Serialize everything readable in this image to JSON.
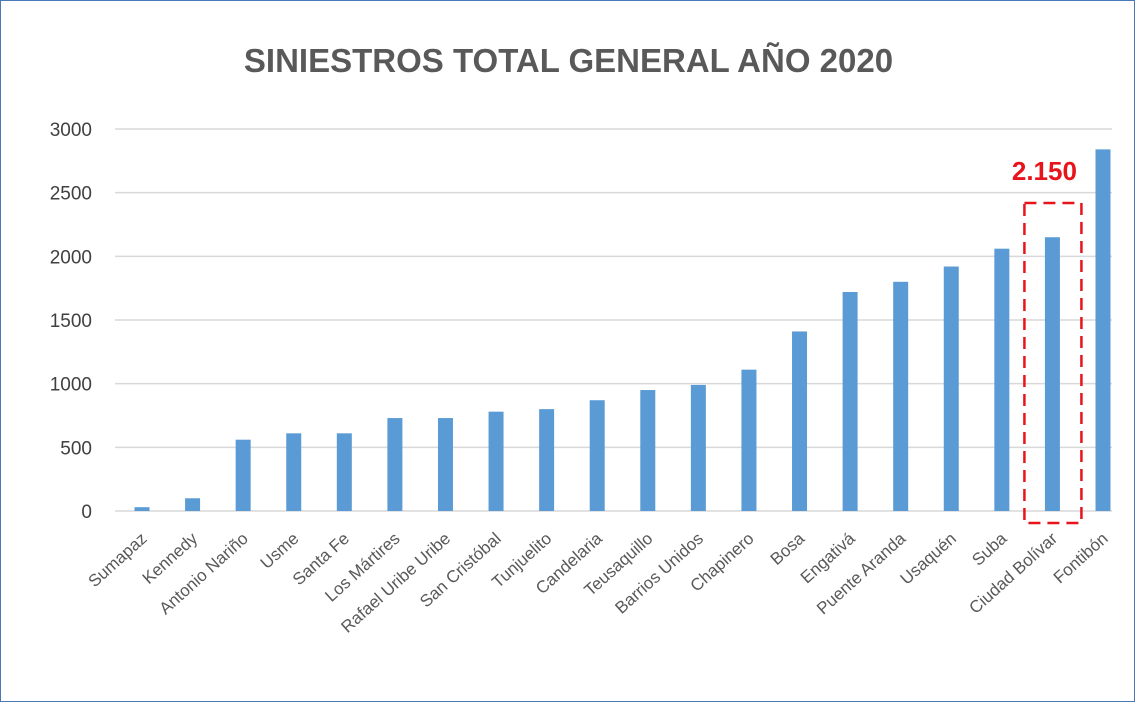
{
  "chart_data": {
    "type": "bar",
    "title": "SINIESTROS TOTAL GENERAL AÑO 2020",
    "xlabel": "",
    "ylabel": "",
    "ylim": [
      0,
      3000
    ],
    "yticks": [
      "3000",
      "2500",
      "2000",
      "1500",
      "1000",
      "500",
      "0"
    ],
    "grid": true,
    "bar_color": "#5b9bd5",
    "categories": [
      "Sumapaz",
      "Kennedy",
      "Antonio Nariño",
      "Usme",
      "Santa Fe",
      "Los Mártires",
      "Rafael Uribe Uribe",
      "San Cristóbal",
      "Tunjuelito",
      "Candelaria",
      "Teusaquillo",
      "Barrios Unidos",
      "Chapinero",
      "Bosa",
      "Engativá",
      "Puente Aranda",
      "Usaquén",
      "Suba",
      "Ciudad Bolívar",
      "Fontibón"
    ],
    "values": [
      30,
      100,
      560,
      610,
      610,
      730,
      730,
      780,
      800,
      870,
      950,
      990,
      1110,
      1410,
      1720,
      1800,
      1920,
      2060,
      2150,
      2840
    ],
    "annotation": {
      "text": "2.150",
      "category": "Ciudad Bolívar",
      "color": "#e8141b"
    }
  }
}
